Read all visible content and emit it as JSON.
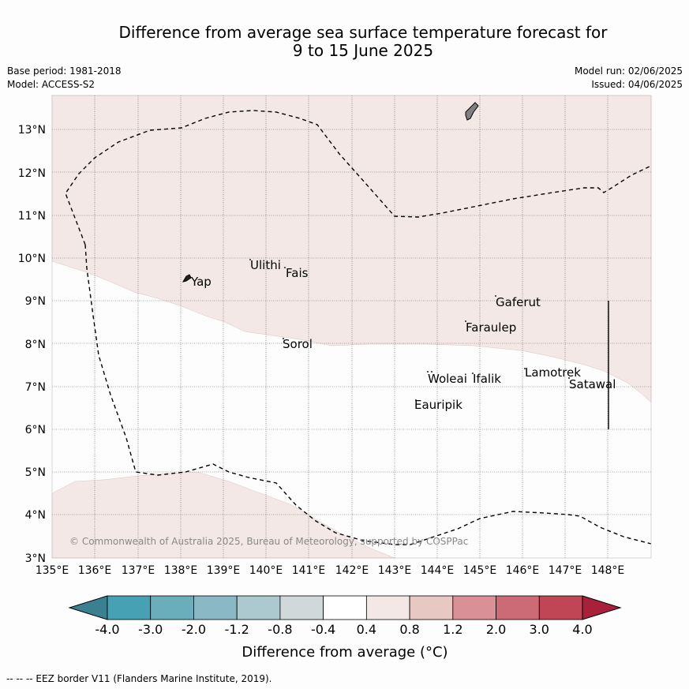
{
  "title_line1": "Difference from average sea surface temperature forecast for",
  "title_line2": "9 to 15 June 2025",
  "base_period": "Base period: 1981-2018",
  "model": "Model: ACCESS-S2",
  "model_run": "Model run: 02/06/2025",
  "issued": "Issued: 04/06/2025",
  "lat_labels": [
    "3°N",
    "4°N",
    "5°N",
    "6°N",
    "7°N",
    "8°N",
    "9°N",
    "10°N",
    "11°N",
    "12°N",
    "13°N"
  ],
  "lon_labels": [
    "135°E",
    "136°E",
    "137°E",
    "138°E",
    "139°E",
    "140°E",
    "141°E",
    "142°E",
    "143°E",
    "144°E",
    "145°E",
    "146°E",
    "147°E",
    "148°E"
  ],
  "places": {
    "yap": "Yap",
    "ulithi": "Ulithi",
    "fais": "Fais",
    "sorol": "Sorol",
    "gaferut": "Gaferut",
    "faraulep": "Faraulep",
    "woleai": "Woleai",
    "ifalik": "Ifalik",
    "lamotrek": "Lamotrek",
    "satawal": "Satawal",
    "eauripik": "Eauripik"
  },
  "copyright": "© Commonwealth of Australia 2025, Bureau of Meteorology, supported by COSPPac",
  "colorbar": {
    "ticks": [
      "-4.0",
      "-3.0",
      "-2.0",
      "-1.2",
      "-0.8",
      "-0.4",
      "0.4",
      "0.8",
      "1.2",
      "2.0",
      "3.0",
      "4.0"
    ],
    "colors": [
      "#45a1b3",
      "#6aaebc",
      "#8ab8c4",
      "#abc9cf",
      "#d0d8da",
      "#ffffff",
      "#f4e8e6",
      "#e8c8c3",
      "#d99096",
      "#cc6a75",
      "#c04655"
    ],
    "under_color": "#3a8090",
    "over_color": "#a8203a",
    "label": "Difference from average (°C)"
  },
  "legend_note": "-- -- -- EEZ border V11 (Flanders Marine Institute, 2019)."
}
